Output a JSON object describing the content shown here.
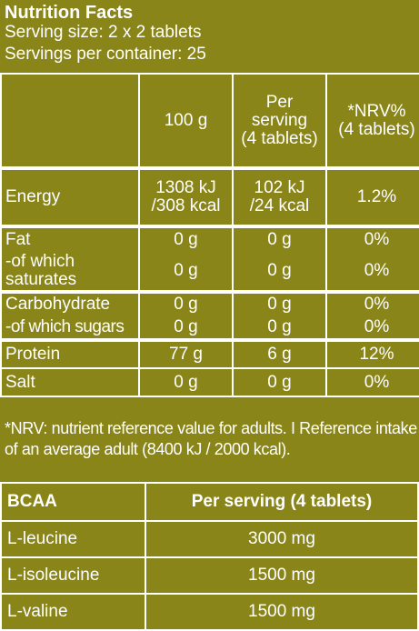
{
  "header": {
    "title": "Nutrition Facts",
    "serving_size": "Serving size: 2 x 2 tablets",
    "servings_per_container": "Servings per container: 25"
  },
  "nutrition_table": {
    "columns": [
      "",
      "100 g",
      "Per serving (4 tablets)",
      "*NRV% (4 tablets)"
    ],
    "col_lines": {
      "per_serving_1": "Per",
      "per_serving_2": "serving",
      "per_serving_3": "(4 tablets)",
      "nrv_1": "*NRV%",
      "nrv_2": "(4 tablets)"
    },
    "rows": {
      "energy": {
        "label": "Energy",
        "g100_1": "1308 kJ",
        "g100_2": "/308 kcal",
        "serv_1": "102 kJ",
        "serv_2": "/24 kcal",
        "nrv": "1.2%"
      },
      "fat": {
        "label": "Fat",
        "g100": "0 g",
        "serv": "0 g",
        "nrv": "0%"
      },
      "saturates": {
        "label_1": "-of which",
        "label_2": "saturates",
        "g100": "0 g",
        "serv": "0 g",
        "nrv": "0%"
      },
      "carbohydrate": {
        "label": "Carbohydrate",
        "g100": "0 g",
        "serv": "0 g",
        "nrv": "0%"
      },
      "sugars": {
        "label": "-of which sugars",
        "g100": "0 g",
        "serv": "0 g",
        "nrv": "0%"
      },
      "protein": {
        "label": "Protein",
        "g100": "77 g",
        "serv": "6 g",
        "nrv": "12%"
      },
      "salt": {
        "label": "Salt",
        "g100": "0 g",
        "serv": "0 g",
        "nrv": "0%"
      }
    }
  },
  "footnote": "*NRV: nutrient reference value for adults. I Reference intake of an average adult (8400 kJ / 2000 kcal).",
  "bcaa_table": {
    "header_label": "BCAA",
    "header_value": "Per serving (4 tablets)",
    "rows": [
      {
        "label": "L-leucine",
        "value": "3000 mg"
      },
      {
        "label": "L-isoleucine",
        "value": "1500 mg"
      },
      {
        "label": "L-valine",
        "value": "1500 mg"
      }
    ]
  },
  "colors": {
    "background": "#8a8519",
    "text": "#ffffff"
  }
}
